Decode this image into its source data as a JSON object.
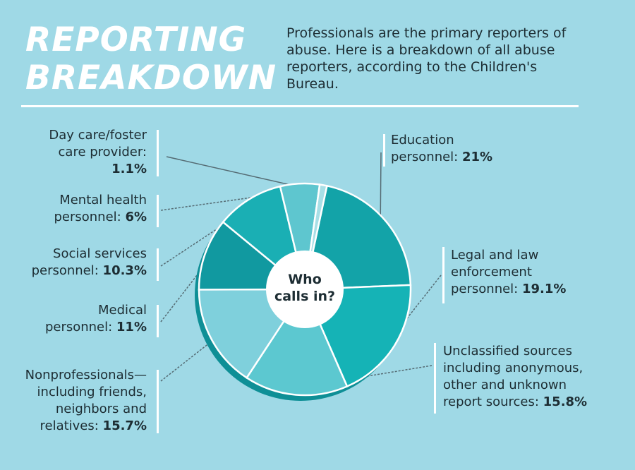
{
  "header": {
    "title_line1": "REPORTING",
    "title_line2": "BREAKDOWN",
    "intro": "Professionals are the primary reporters of abuse. Here is a breakdown of all abuse reporters, according to the Children's Bureau."
  },
  "chart_data": {
    "type": "pie",
    "center_label": [
      "Who",
      "calls in?"
    ],
    "slices": [
      {
        "name": "Education personnel",
        "value": 21,
        "label_lines": [
          "Education",
          "personnel: "
        ],
        "value_text": "21%",
        "color": "#13a3a8"
      },
      {
        "name": "Legal and law enforcement personnel",
        "value": 19.1,
        "label_lines": [
          "Legal and law",
          "enforcement",
          "personnel: "
        ],
        "value_text": "19.1%",
        "color": "#15b3b6"
      },
      {
        "name": "Unclassified sources including anonymous, other and unknown report sources",
        "value": 15.8,
        "label_lines": [
          "Unclassified sources",
          "including anonymous,",
          "other and unknown",
          "report sources: "
        ],
        "value_text": "15.8%",
        "color": "#5cc8d0"
      },
      {
        "name": "Nonprofessionals—including friends, neighbors and relatives",
        "value": 15.7,
        "label_lines": [
          "Nonprofessionals—",
          "including friends,",
          "neighbors and",
          "relatives: "
        ],
        "value_text": "15.7%",
        "color": "#7fd0dc"
      },
      {
        "name": "Medical personnel",
        "value": 11,
        "label_lines": [
          "Medical",
          "personnel: "
        ],
        "value_text": "11%",
        "color": "#1199a0"
      },
      {
        "name": "Social services personnel",
        "value": 10.3,
        "label_lines": [
          "Social services",
          "personnel: "
        ],
        "value_text": "10.3%",
        "color": "#1aafb4"
      },
      {
        "name": "Mental health personnel",
        "value": 6,
        "label_lines": [
          "Mental health",
          "personnel: "
        ],
        "value_text": "6%",
        "color": "#5ec6cf"
      },
      {
        "name": "Day care/foster care provider",
        "value": 1.1,
        "label_lines": [
          "Day care/foster",
          "care provider:"
        ],
        "value_text": "1.1%",
        "color": "#a8dfe6"
      }
    ]
  }
}
